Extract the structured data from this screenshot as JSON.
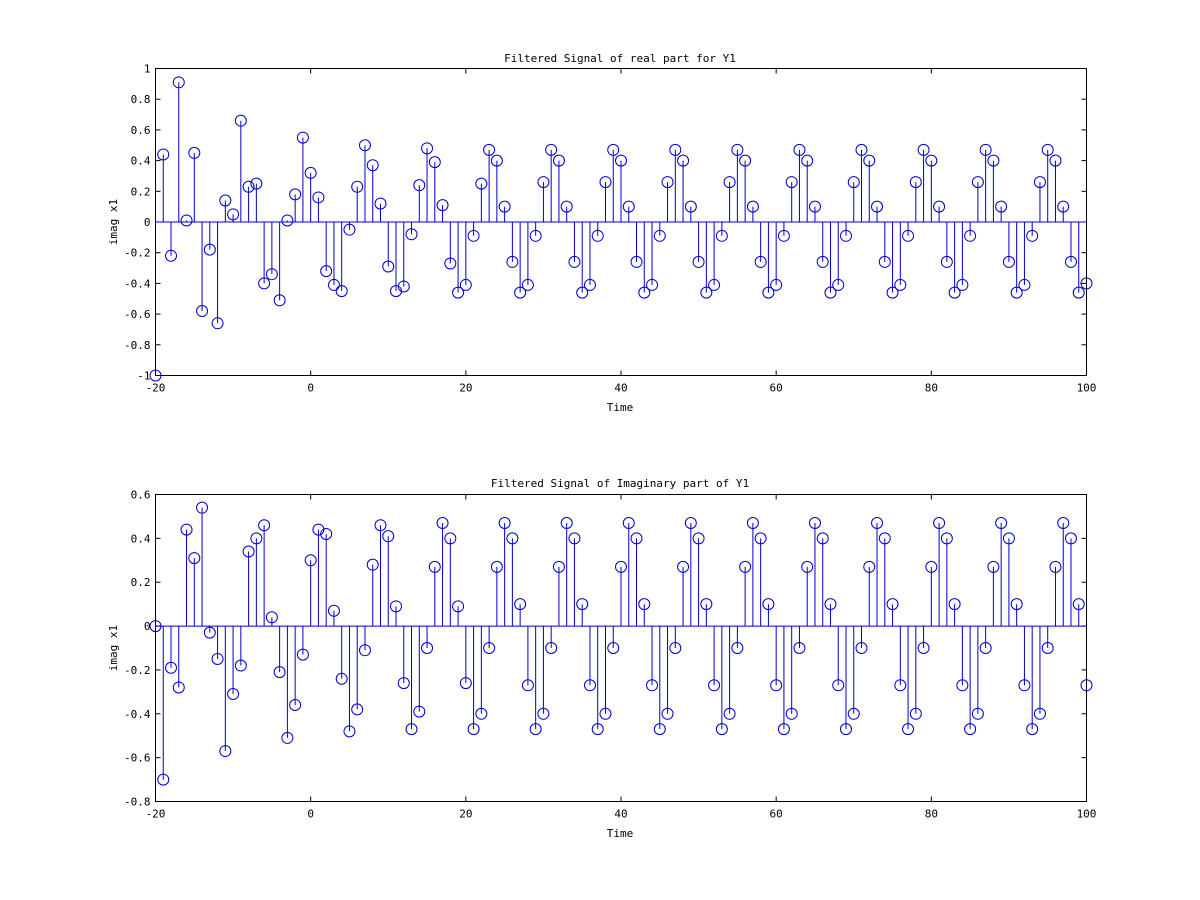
{
  "chart_data": [
    {
      "type": "stem",
      "title": "Filtered Signal of real part for Y1",
      "xlabel": "Time",
      "ylabel": "imag x1",
      "xlim": [
        -20,
        100
      ],
      "ylim": [
        -1,
        1
      ],
      "xticks": [
        -20,
        0,
        20,
        40,
        60,
        80,
        100
      ],
      "yticks": [
        -1,
        -0.8,
        -0.6,
        -0.4,
        -0.2,
        0,
        0.2,
        0.4,
        0.6,
        0.8,
        1
      ],
      "xtick_labels": [
        "-20",
        "0",
        "20",
        "40",
        "60",
        "80",
        "100"
      ],
      "ytick_labels": [
        "-1",
        "-0.8",
        "-0.6",
        "-0.4",
        "-0.2",
        "0",
        "0.2",
        "0.4",
        "0.6",
        "0.8",
        "1"
      ],
      "grid": false,
      "color": "#0000cc",
      "x_start": -20,
      "x_step": 1,
      "values": [
        -1,
        0.44,
        -0.22,
        0.91,
        0.01,
        0.45,
        -0.58,
        -0.18,
        -0.66,
        0.14,
        0.05,
        0.66,
        0.23,
        0.25,
        -0.4,
        -0.34,
        -0.51,
        0.01,
        0.18,
        0.55,
        0.32,
        0.16,
        -0.32,
        -0.41,
        -0.45,
        -0.05,
        0.23,
        0.5,
        0.37,
        0.12,
        -0.29,
        -0.45,
        -0.42,
        -0.08,
        0.24,
        0.48,
        0.39,
        0.11,
        -0.27,
        -0.46,
        -0.41,
        -0.09,
        0.25,
        0.47,
        0.4,
        0.1,
        -0.26,
        -0.46,
        -0.41,
        -0.09,
        0.26,
        0.47,
        0.4,
        0.1,
        -0.26,
        -0.46,
        -0.41,
        -0.09,
        0.26,
        0.47,
        0.4,
        0.1,
        -0.26,
        -0.46,
        -0.41,
        -0.09,
        0.26,
        0.47,
        0.4,
        0.1,
        -0.26,
        -0.46,
        -0.41,
        -0.09,
        0.26,
        0.47,
        0.4,
        0.1,
        -0.26,
        -0.46,
        -0.41,
        -0.09,
        0.26,
        0.47,
        0.4,
        0.1,
        -0.26,
        -0.46,
        -0.41,
        -0.09,
        0.26,
        0.47,
        0.4,
        0.1,
        -0.26,
        -0.46,
        -0.41,
        -0.09,
        0.26,
        0.47,
        0.4,
        0.1,
        -0.26,
        -0.46,
        -0.41,
        -0.09,
        0.26,
        0.47,
        0.4,
        0.1,
        -0.26,
        -0.46,
        -0.41,
        -0.09,
        0.26,
        0.47,
        0.4,
        0.1,
        -0.26,
        -0.46,
        -0.4
      ]
    },
    {
      "type": "stem",
      "title": "Filtered Signal of Imaginary part of Y1",
      "xlabel": "Time",
      "ylabel": "imag x1",
      "xlim": [
        -20,
        100
      ],
      "ylim": [
        -0.8,
        0.6
      ],
      "xticks": [
        -20,
        0,
        20,
        40,
        60,
        80,
        100
      ],
      "yticks": [
        -0.8,
        -0.6,
        -0.4,
        -0.2,
        0,
        0.2,
        0.4,
        0.6
      ],
      "xtick_labels": [
        "-20",
        "0",
        "20",
        "40",
        "60",
        "80",
        "100"
      ],
      "ytick_labels": [
        "-0.8",
        "-0.6",
        "-0.4",
        "-0.2",
        "0",
        "0.2",
        "0.4",
        "0.6"
      ],
      "grid": false,
      "color": "#0000cc",
      "x_start": -20,
      "x_step": 1,
      "values": [
        0.0,
        -0.7,
        -0.19,
        -0.28,
        0.44,
        0.31,
        0.54,
        -0.03,
        -0.15,
        -0.57,
        -0.31,
        -0.18,
        0.34,
        0.4,
        0.46,
        0.04,
        -0.21,
        -0.51,
        -0.36,
        -0.13,
        0.3,
        0.44,
        0.42,
        0.07,
        -0.24,
        -0.48,
        -0.38,
        -0.11,
        0.28,
        0.46,
        0.41,
        0.09,
        -0.26,
        -0.47,
        -0.39,
        -0.1,
        0.27,
        0.47,
        0.4,
        0.09,
        -0.26,
        -0.47,
        -0.4,
        -0.1,
        0.27,
        0.47,
        0.4,
        0.1,
        -0.27,
        -0.47,
        -0.4,
        -0.1,
        0.27,
        0.47,
        0.4,
        0.1,
        -0.27,
        -0.47,
        -0.4,
        -0.1,
        0.27,
        0.47,
        0.4,
        0.1,
        -0.27,
        -0.47,
        -0.4,
        -0.1,
        0.27,
        0.47,
        0.4,
        0.1,
        -0.27,
        -0.47,
        -0.4,
        -0.1,
        0.27,
        0.47,
        0.4,
        0.1,
        -0.27,
        -0.47,
        -0.4,
        -0.1,
        0.27,
        0.47,
        0.4,
        0.1,
        -0.27,
        -0.47,
        -0.4,
        -0.1,
        0.27,
        0.47,
        0.4,
        0.1,
        -0.27,
        -0.47,
        -0.4,
        -0.1,
        0.27,
        0.47,
        0.4,
        0.1,
        -0.27,
        -0.47,
        -0.4,
        -0.1,
        0.27,
        0.47,
        0.4,
        0.1,
        -0.27,
        -0.47,
        -0.4,
        -0.1,
        0.27,
        0.47,
        0.4,
        0.1,
        -0.27
      ]
    }
  ]
}
